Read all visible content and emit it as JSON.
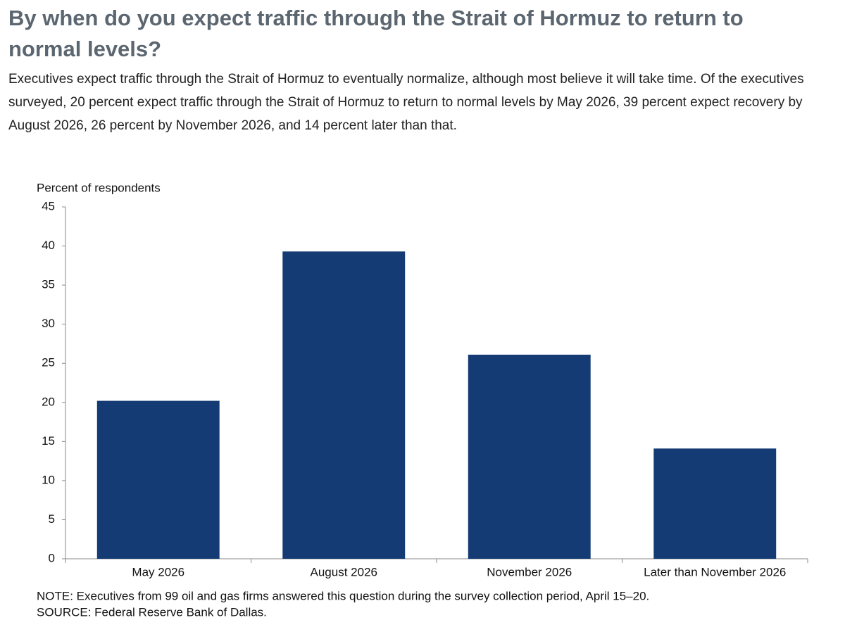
{
  "chart_data": {
    "type": "bar",
    "title": "By when do you expect traffic through the Strait of Hormuz to return to normal levels?",
    "subtitle": "Executives expect traffic through the Strait of Hormuz to eventually normalize, although most believe it will take time. Of the executives surveyed, 20 percent expect traffic through the Strait of Hormuz to return to normal levels by May 2026, 39 percent expect recovery by August 2026, 26 percent by November 2026, and 14 percent later than that.",
    "y_axis_label": "Percent of respondents",
    "categories": [
      "May 2026",
      "August 2026",
      "November 2026",
      "Later than November 2026"
    ],
    "values": [
      20.2,
      39.3,
      26.1,
      14.1
    ],
    "color": "#143b73",
    "ylim": [
      0,
      45
    ],
    "yticks": [
      0,
      5,
      10,
      15,
      20,
      25,
      30,
      35,
      40,
      45
    ],
    "note": "NOTE: Executives from 99 oil and gas firms answered this question during the survey collection period, April 15–20.",
    "source": "SOURCE: Federal Reserve Bank of Dallas."
  }
}
